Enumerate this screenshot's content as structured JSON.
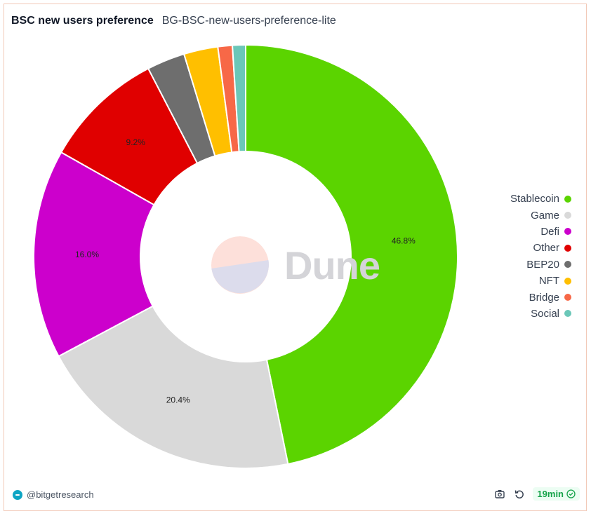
{
  "header": {
    "title": "BSC new users preference",
    "subtitle": "BG-BSC-new-users-preference-lite"
  },
  "chart_data": {
    "type": "pie",
    "donut": true,
    "legend_position": "right",
    "slices": [
      {
        "label": "Stablecoin",
        "value": 46.8,
        "color": "#5bd400",
        "text": "46.8%"
      },
      {
        "label": "Game",
        "value": 20.4,
        "color": "#d9d9d9",
        "text": "20.4%"
      },
      {
        "label": "Defi",
        "value": 16.0,
        "color": "#cc00cc",
        "text": "16.0%"
      },
      {
        "label": "Other",
        "value": 9.2,
        "color": "#e00000",
        "text": "9.2%"
      },
      {
        "label": "BEP20",
        "value": 2.9,
        "color": "#6e6e6e",
        "text": ""
      },
      {
        "label": "NFT",
        "value": 2.6,
        "color": "#ffbf00",
        "text": ""
      },
      {
        "label": "Bridge",
        "value": 1.1,
        "color": "#f76847",
        "text": ""
      },
      {
        "label": "Social",
        "value": 1.0,
        "color": "#6bc7b8",
        "text": ""
      }
    ]
  },
  "watermark": {
    "text": "Dune"
  },
  "footer": {
    "author": "@bitgetresearch",
    "refresh_badge": "19min",
    "icons": [
      "camera-icon",
      "refresh-icon",
      "check-circle-icon"
    ]
  }
}
